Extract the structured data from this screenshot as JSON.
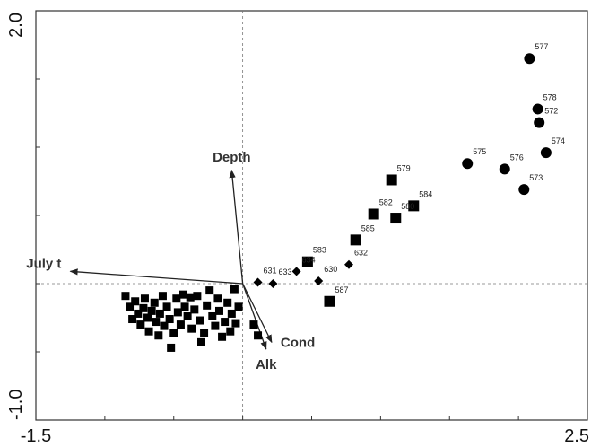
{
  "chart_data": {
    "type": "biplot",
    "xlim": [
      -1.5,
      2.5
    ],
    "ylim": [
      -1,
      2
    ],
    "xticks": [
      -1.5,
      2.5
    ],
    "yticks": [
      {
        "value": 2,
        "label": "2.0"
      },
      {
        "value": -1,
        "label": "-1.0"
      }
    ],
    "xminor": [
      -1,
      -0.5,
      0,
      0.5,
      1,
      1.5,
      2
    ],
    "yminor": [
      -0.5,
      0,
      0.5,
      1,
      1.5
    ],
    "zero_lines": true,
    "series": [
      {
        "marker": "circle",
        "color": "#000000",
        "labels": [
          "577",
          "578",
          "572",
          "574",
          "575",
          "576",
          "573"
        ],
        "x": [
          2.08,
          2.14,
          2.15,
          2.2,
          1.63,
          1.9,
          2.04
        ],
        "y": [
          1.65,
          1.28,
          1.18,
          0.96,
          0.88,
          0.84,
          0.69
        ]
      },
      {
        "marker": "square",
        "color": "#000000",
        "labels": [
          "579",
          "584",
          "582",
          "580",
          "585",
          "583",
          "587"
        ],
        "x": [
          1.08,
          1.24,
          0.95,
          1.11,
          0.82,
          0.47,
          0.63
        ],
        "y": [
          0.76,
          0.57,
          0.51,
          0.48,
          0.32,
          0.16,
          -0.13
        ]
      },
      {
        "marker": "diamond",
        "color": "#000000",
        "labels": [
          "631",
          "633",
          "634",
          "630",
          "632"
        ],
        "x": [
          0.11,
          0.22,
          0.39,
          0.55,
          0.77
        ],
        "y": [
          0.01,
          0.0,
          0.09,
          0.02,
          0.14
        ]
      },
      {
        "marker": "square",
        "color": "#000000",
        "x": [
          -0.85,
          -0.82,
          -0.8,
          -0.78,
          -0.76,
          -0.74,
          -0.72,
          -0.71,
          -0.69,
          -0.68,
          -0.66,
          -0.64,
          -0.63,
          -0.61,
          -0.6,
          -0.58,
          -0.57,
          -0.55,
          -0.53,
          -0.52,
          -0.5,
          -0.48,
          -0.47,
          -0.45,
          -0.43,
          -0.42,
          -0.4,
          -0.38,
          -0.37,
          -0.35,
          -0.33,
          -0.31,
          -0.3,
          -0.28,
          -0.26,
          -0.24,
          -0.22,
          -0.2,
          -0.18,
          -0.17,
          -0.15,
          -0.13,
          -0.11,
          -0.09,
          -0.08,
          -0.06,
          -0.05,
          -0.03,
          0.08,
          0.11
        ],
        "y": [
          -0.09,
          -0.17,
          -0.26,
          -0.13,
          -0.22,
          -0.3,
          -0.18,
          -0.11,
          -0.25,
          -0.35,
          -0.2,
          -0.14,
          -0.28,
          -0.38,
          -0.22,
          -0.09,
          -0.31,
          -0.17,
          -0.26,
          -0.47,
          -0.36,
          -0.11,
          -0.21,
          -0.3,
          -0.08,
          -0.17,
          -0.24,
          -0.1,
          -0.33,
          -0.19,
          -0.09,
          -0.27,
          -0.43,
          -0.36,
          -0.16,
          -0.05,
          -0.24,
          -0.31,
          -0.11,
          -0.2,
          -0.39,
          -0.28,
          -0.14,
          -0.35,
          -0.22,
          -0.04,
          -0.29,
          -0.17,
          -0.3,
          -0.38
        ]
      }
    ],
    "vectors": [
      {
        "label": "Depth",
        "x": -0.08,
        "y": 0.83
      },
      {
        "label": "July t",
        "x": -1.25,
        "y": 0.09
      },
      {
        "label": "Cond",
        "x": 0.21,
        "y": -0.43
      },
      {
        "label": "Alk",
        "x": 0.17,
        "y": -0.48
      }
    ]
  }
}
